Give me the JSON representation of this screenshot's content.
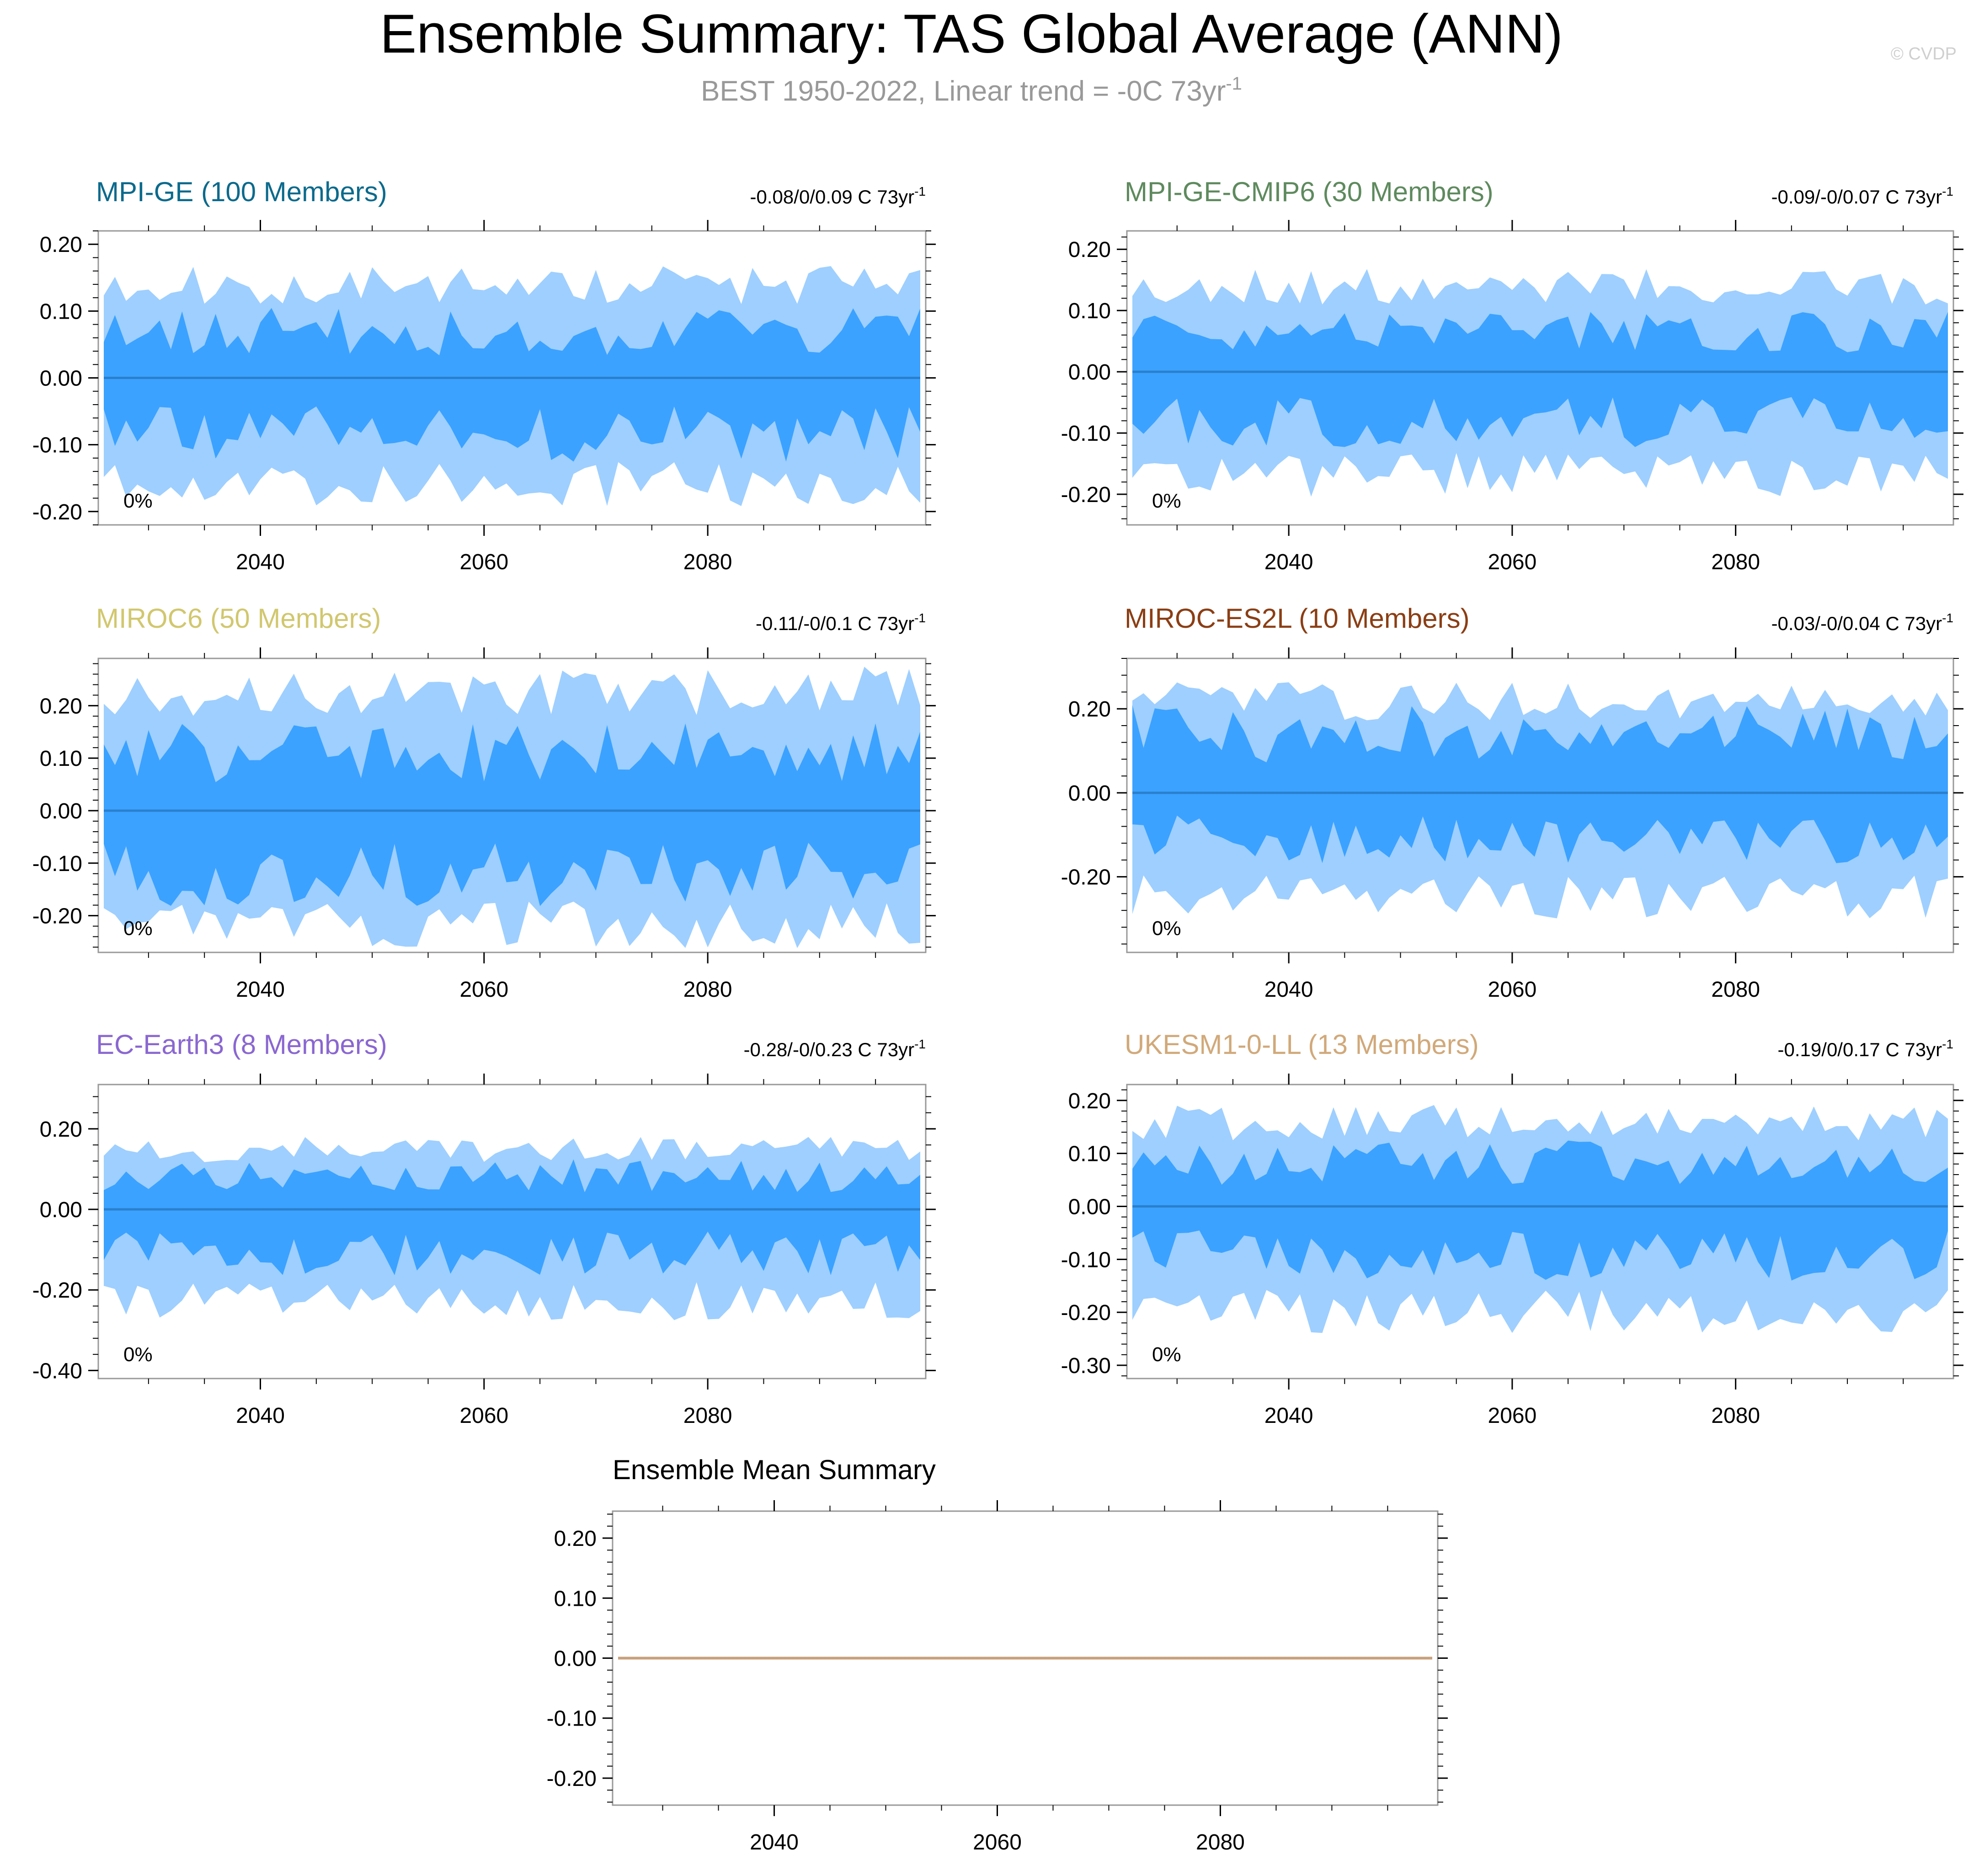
{
  "title": "Ensemble Summary: TAS Global Average (ANN)",
  "subtitle": {
    "text": "BEST 1950-2022, Linear trend = -0C 73yr",
    "sup": "-1"
  },
  "watermark": "© CVDP",
  "colors": {
    "outer_band": "#9ecfff",
    "inner_band": "#3ba2ff",
    "median_line": "#2a7fcc",
    "mean_line": "#c8a07c",
    "subtitle": "#999999",
    "watermark": "#cfcfcf",
    "axis": "#000000"
  },
  "chart_data": [
    {
      "type": "area",
      "model": "MPI-GE (100 Members)",
      "title_color": "#0b6a8c",
      "trend": {
        "text": "-0.08/0/0.09 C 73yr",
        "sup": "-1"
      },
      "percent_label": "0%",
      "xlim": [
        2026,
        2099
      ],
      "xticks": [
        2040,
        2060,
        2080
      ],
      "ylim": [
        -0.22,
        0.22
      ],
      "yticks": [
        0.2,
        0.1,
        0.0,
        -0.1,
        -0.2
      ],
      "ytick_labels": [
        "0.20",
        "0.10",
        "0.00",
        "-0.10",
        "-0.20"
      ],
      "outer_max": 0.14,
      "inner_max": 0.075,
      "outer_min": -0.16,
      "inner_min": -0.09,
      "seed": 11
    },
    {
      "type": "area",
      "model": "MPI-GE-CMIP6 (30 Members)",
      "title_color": "#5e8a5e",
      "trend": {
        "text": "-0.09/-0/0.07 C 73yr",
        "sup": "-1"
      },
      "percent_label": "0%",
      "xlim": [
        2026,
        2099
      ],
      "xticks": [
        2040,
        2060,
        2080
      ],
      "ylim": [
        -0.25,
        0.23
      ],
      "yticks": [
        0.2,
        0.1,
        0.0,
        -0.1,
        -0.2
      ],
      "ytick_labels": [
        "0.20",
        "0.10",
        "0.00",
        "-0.10",
        "-0.20"
      ],
      "outer_max": 0.14,
      "inner_max": 0.07,
      "outer_min": -0.17,
      "inner_min": -0.09,
      "seed": 23
    },
    {
      "type": "area",
      "model": "MIROC6 (50 Members)",
      "title_color": "#d1c76e",
      "trend": {
        "text": "-0.11/-0/0.1 C 73yr",
        "sup": "-1"
      },
      "percent_label": "0%",
      "xlim": [
        2026,
        2099
      ],
      "xticks": [
        2040,
        2060,
        2080
      ],
      "ylim": [
        -0.27,
        0.29
      ],
      "yticks": [
        0.2,
        0.1,
        0.0,
        -0.1,
        -0.2
      ],
      "ytick_labels": [
        "0.20",
        "0.10",
        "0.00",
        "-0.10",
        "-0.20"
      ],
      "outer_max": 0.23,
      "inner_max": 0.12,
      "outer_min": -0.22,
      "inner_min": -0.13,
      "seed": 37
    },
    {
      "type": "area",
      "model": "MIROC-ES2L (10 Members)",
      "title_color": "#8b3e14",
      "trend": {
        "text": "-0.03/-0/0.04 C 73yr",
        "sup": "-1"
      },
      "percent_label": "0%",
      "xlim": [
        2026,
        2099
      ],
      "xticks": [
        2040,
        2060,
        2080
      ],
      "ylim": [
        -0.38,
        0.32
      ],
      "yticks": [
        0.2,
        0.0,
        -0.2
      ],
      "ytick_labels": [
        "0.20",
        "0.00",
        "-0.20"
      ],
      "outer_max": 0.22,
      "inner_max": 0.15,
      "outer_min": -0.25,
      "inner_min": -0.12,
      "seed": 41
    },
    {
      "type": "area",
      "model": "EC-Earth3 (8 Members)",
      "title_color": "#8a67d1",
      "trend": {
        "text": "-0.28/-0/0.23 C 73yr",
        "sup": "-1"
      },
      "percent_label": "0%",
      "xlim": [
        2026,
        2099
      ],
      "xticks": [
        2040,
        2060,
        2080
      ],
      "ylim": [
        -0.42,
        0.31
      ],
      "yticks": [
        0.2,
        0.0,
        -0.2,
        -0.4
      ],
      "ytick_labels": [
        "0.20",
        "0.00",
        "-0.20",
        "-0.40"
      ],
      "outer_max": 0.15,
      "inner_max": 0.09,
      "outer_min": -0.23,
      "inner_min": -0.12,
      "seed": 53
    },
    {
      "type": "area",
      "model": "UKESM1-0-LL (13 Members)",
      "title_color": "#d1a97a",
      "trend": {
        "text": "-0.19/0/0.17 C 73yr",
        "sup": "-1"
      },
      "percent_label": "0%",
      "xlim": [
        2026,
        2099
      ],
      "xticks": [
        2040,
        2060,
        2080
      ],
      "ylim": [
        -0.325,
        0.23
      ],
      "yticks": [
        0.2,
        0.1,
        0.0,
        -0.1,
        -0.2,
        -0.3
      ],
      "ytick_labels": [
        "0.20",
        "0.10",
        "0.00",
        "-0.10",
        "-0.20",
        "-0.30"
      ],
      "outer_max": 0.16,
      "inner_max": 0.09,
      "outer_min": -0.2,
      "inner_min": -0.1,
      "seed": 67
    },
    {
      "type": "line",
      "model": "Ensemble Mean Summary",
      "title_color": "#000000",
      "xlim": [
        2026,
        2099
      ],
      "xticks": [
        2040,
        2060,
        2080
      ],
      "ylim": [
        -0.245,
        0.245
      ],
      "yticks": [
        0.2,
        0.1,
        0.0,
        -0.1,
        -0.2
      ],
      "ytick_labels": [
        "0.20",
        "0.10",
        "0.00",
        "-0.10",
        "-0.20"
      ],
      "series": [
        {
          "name": "ensemble mean",
          "x": [
            2026,
            2099
          ],
          "y": [
            0.0,
            0.0
          ]
        }
      ]
    }
  ]
}
